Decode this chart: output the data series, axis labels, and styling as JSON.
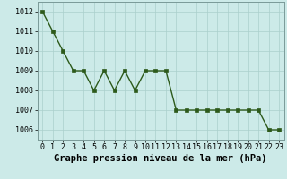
{
  "x": [
    0,
    1,
    2,
    3,
    4,
    5,
    6,
    7,
    8,
    9,
    10,
    11,
    12,
    13,
    14,
    15,
    16,
    17,
    18,
    19,
    20,
    21,
    22,
    23
  ],
  "y": [
    1012,
    1011,
    1010,
    1009,
    1009,
    1008,
    1009,
    1008,
    1009,
    1008,
    1009,
    1009,
    1009,
    1007,
    1007,
    1007,
    1007,
    1007,
    1007,
    1007,
    1007,
    1007,
    1006,
    1006
  ],
  "line_color": "#2d5a1b",
  "marker_color": "#2d5a1b",
  "bg_color": "#cceae8",
  "grid_color": "#aacfcc",
  "xlabel": "Graphe pression niveau de la mer (hPa)",
  "ylim_min": 1005.5,
  "ylim_max": 1012.5,
  "yticks": [
    1006,
    1007,
    1008,
    1009,
    1010,
    1011,
    1012
  ],
  "xticks": [
    0,
    1,
    2,
    3,
    4,
    5,
    6,
    7,
    8,
    9,
    10,
    11,
    12,
    13,
    14,
    15,
    16,
    17,
    18,
    19,
    20,
    21,
    22,
    23
  ],
  "xlabel_fontsize": 7.5,
  "tick_fontsize": 6,
  "line_width": 1.0,
  "marker_size": 2.5
}
